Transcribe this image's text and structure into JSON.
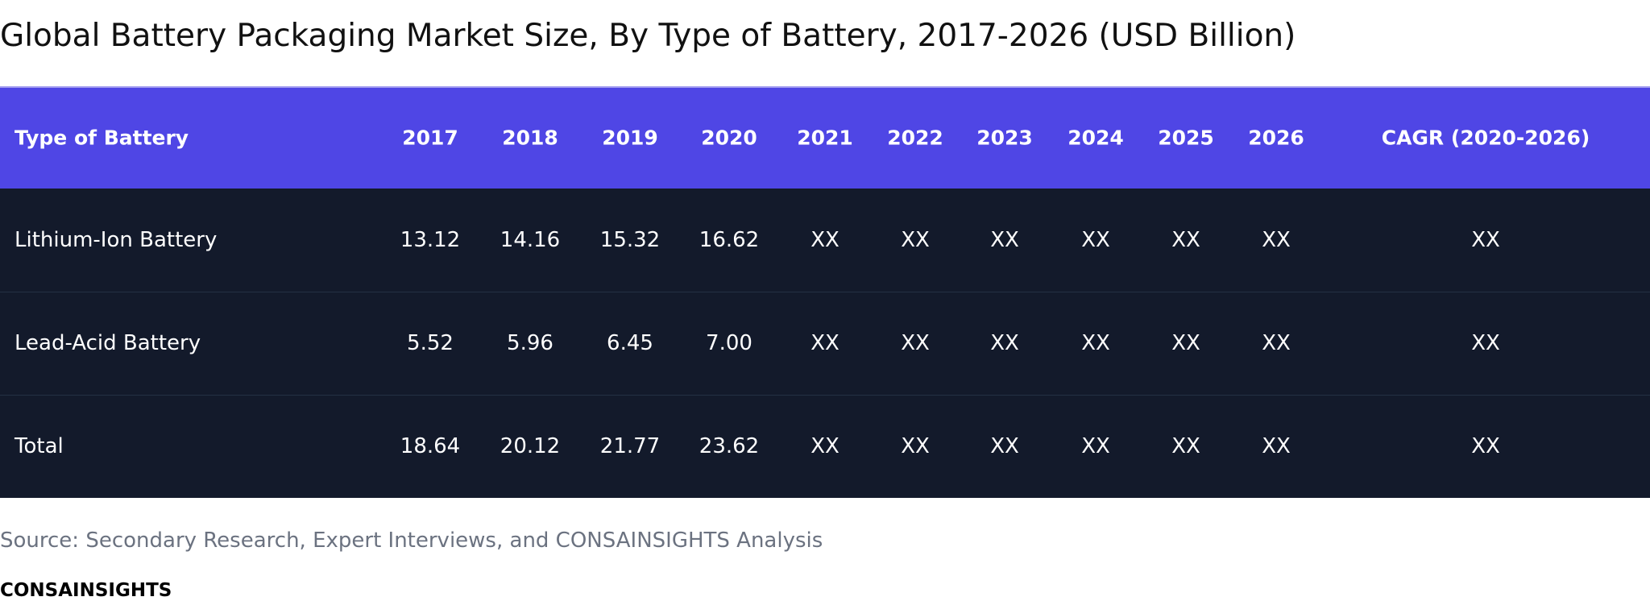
{
  "title": "Global Battery Packaging Market Size, By Type of Battery, 2017-2026 (USD Billion)",
  "table": {
    "header": [
      "Type of Battery",
      "2017",
      "2018",
      "2019",
      "2020",
      "2021",
      "2022",
      "2023",
      "2024",
      "2025",
      "2026",
      "CAGR (2020-2026)"
    ],
    "rows": [
      [
        "Lithium-Ion Battery",
        "13.12",
        "14.16",
        "15.32",
        "16.62",
        "XX",
        "XX",
        "XX",
        "XX",
        "XX",
        "XX",
        "XX"
      ],
      [
        "Lead-Acid Battery",
        "5.52",
        "5.96",
        "6.45",
        "7.00",
        "XX",
        "XX",
        "XX",
        "XX",
        "XX",
        "XX",
        "XX"
      ],
      [
        "Total",
        "18.64",
        "20.12",
        "21.77",
        "23.62",
        "XX",
        "XX",
        "XX",
        "XX",
        "XX",
        "XX",
        "XX"
      ]
    ]
  },
  "source": "Source: Secondary Research, Expert Interviews, and CONSAINSIGHTS Analysis",
  "brand": "CONSAINSIGHTS"
}
